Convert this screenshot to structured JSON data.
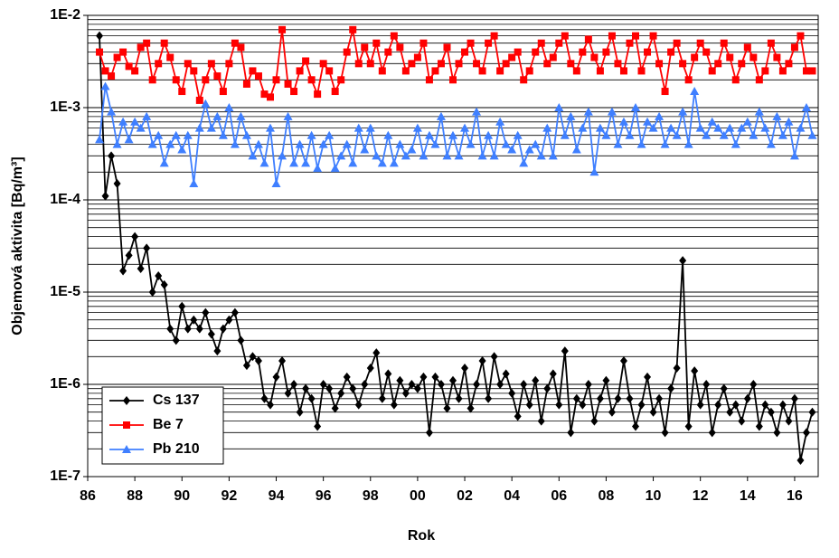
{
  "chart_data": {
    "type": "line",
    "log_y": true,
    "grid": true,
    "minor_grid": true,
    "legend": "lower left",
    "x_label": "Rok",
    "y_label": "Objemová aktivita [Bq/m³]",
    "xlim": [
      1986,
      2017
    ],
    "xticks": [
      {
        "value": 1986,
        "label": "86"
      },
      {
        "value": 1988,
        "label": "88"
      },
      {
        "value": 1990,
        "label": "90"
      },
      {
        "value": 1992,
        "label": "92"
      },
      {
        "value": 1994,
        "label": "94"
      },
      {
        "value": 1996,
        "label": "96"
      },
      {
        "value": 1998,
        "label": "98"
      },
      {
        "value": 2000,
        "label": "00"
      },
      {
        "value": 2002,
        "label": "02"
      },
      {
        "value": 2004,
        "label": "04"
      },
      {
        "value": 2006,
        "label": "06"
      },
      {
        "value": 2008,
        "label": "08"
      },
      {
        "value": 2010,
        "label": "10"
      },
      {
        "value": 2012,
        "label": "12"
      },
      {
        "value": 2014,
        "label": "14"
      },
      {
        "value": 2016,
        "label": "16"
      }
    ],
    "ylim": [
      1e-07,
      0.01
    ],
    "yticks": [
      {
        "value": 1e-07,
        "label": "1E-7"
      },
      {
        "value": 1e-06,
        "label": "1E-6"
      },
      {
        "value": 1e-05,
        "label": "1E-5"
      },
      {
        "value": 0.0001,
        "label": "1E-4"
      },
      {
        "value": 0.001,
        "label": "1E-3"
      },
      {
        "value": 0.01,
        "label": "1E-2"
      }
    ],
    "x": [
      1986.5,
      1986.75,
      1987,
      1987.25,
      1987.5,
      1987.75,
      1988,
      1988.25,
      1988.5,
      1988.75,
      1989,
      1989.25,
      1989.5,
      1989.75,
      1990,
      1990.25,
      1990.5,
      1990.75,
      1991,
      1991.25,
      1991.5,
      1991.75,
      1992,
      1992.25,
      1992.5,
      1992.75,
      1993,
      1993.25,
      1993.5,
      1993.75,
      1994,
      1994.25,
      1994.5,
      1994.75,
      1995,
      1995.25,
      1995.5,
      1995.75,
      1996,
      1996.25,
      1996.5,
      1996.75,
      1997,
      1997.25,
      1997.5,
      1997.75,
      1998,
      1998.25,
      1998.5,
      1998.75,
      1999,
      1999.25,
      1999.5,
      1999.75,
      2000,
      2000.25,
      2000.5,
      2000.75,
      2001,
      2001.25,
      2001.5,
      2001.75,
      2002,
      2002.25,
      2002.5,
      2002.75,
      2003,
      2003.25,
      2003.5,
      2003.75,
      2004,
      2004.25,
      2004.5,
      2004.75,
      2005,
      2005.25,
      2005.5,
      2005.75,
      2006,
      2006.25,
      2006.5,
      2006.75,
      2007,
      2007.25,
      2007.5,
      2007.75,
      2008,
      2008.25,
      2008.5,
      2008.75,
      2009,
      2009.25,
      2009.5,
      2009.75,
      2010,
      2010.25,
      2010.5,
      2010.75,
      2011,
      2011.25,
      2011.5,
      2011.75,
      2012,
      2012.25,
      2012.5,
      2012.75,
      2013,
      2013.25,
      2013.5,
      2013.75,
      2014,
      2014.25,
      2014.5,
      2014.75,
      2015,
      2015.25,
      2015.5,
      2015.75,
      2016,
      2016.25,
      2016.5,
      2016.75
    ],
    "series": [
      {
        "name": "Cs 137",
        "color": "#000000",
        "marker": "diamond",
        "values": [
          0.006,
          0.00011,
          0.0003,
          0.00015,
          1.7e-05,
          2.5e-05,
          4e-05,
          1.8e-05,
          3e-05,
          1e-05,
          1.5e-05,
          1.2e-05,
          4e-06,
          3e-06,
          7e-06,
          4e-06,
          5e-06,
          4e-06,
          6e-06,
          3.5e-06,
          2.3e-06,
          4e-06,
          5e-06,
          6e-06,
          3e-06,
          1.6e-06,
          2e-06,
          1.8e-06,
          7e-07,
          6e-07,
          1.2e-06,
          1.8e-06,
          8e-07,
          1e-06,
          5e-07,
          9e-07,
          7e-07,
          3.5e-07,
          1e-06,
          9e-07,
          5.5e-07,
          8e-07,
          1.2e-06,
          9e-07,
          6e-07,
          1e-06,
          1.5e-06,
          2.2e-06,
          7e-07,
          1.3e-06,
          6e-07,
          1.1e-06,
          8e-07,
          1e-06,
          9e-07,
          1.2e-06,
          3e-07,
          1.2e-06,
          1e-06,
          5.5e-07,
          1.1e-06,
          7e-07,
          1.5e-06,
          5.5e-07,
          1e-06,
          1.8e-06,
          7e-07,
          2e-06,
          1e-06,
          1.3e-06,
          8e-07,
          4.5e-07,
          1e-06,
          6e-07,
          1.1e-06,
          4e-07,
          9e-07,
          1.3e-06,
          6e-07,
          2.3e-06,
          3e-07,
          7e-07,
          6e-07,
          1e-06,
          4e-07,
          7e-07,
          1.1e-06,
          5e-07,
          7e-07,
          1.8e-06,
          7e-07,
          3.5e-07,
          6e-07,
          1.2e-06,
          5e-07,
          7e-07,
          3e-07,
          9e-07,
          1.5e-06,
          2.2e-05,
          3.5e-07,
          1.4e-06,
          6e-07,
          1e-06,
          3e-07,
          6e-07,
          9e-07,
          5e-07,
          6e-07,
          4e-07,
          7e-07,
          1e-06,
          3.5e-07,
          6e-07,
          5e-07,
          3e-07,
          6e-07,
          4e-07,
          7e-07,
          1.5e-07,
          3e-07,
          5e-07
        ]
      },
      {
        "name": "Be 7",
        "color": "#ff0000",
        "marker": "square",
        "values": [
          0.004,
          0.0025,
          0.0022,
          0.0035,
          0.004,
          0.0028,
          0.0025,
          0.0045,
          0.005,
          0.002,
          0.003,
          0.005,
          0.0035,
          0.002,
          0.0015,
          0.003,
          0.0025,
          0.0012,
          0.002,
          0.003,
          0.0022,
          0.0015,
          0.003,
          0.005,
          0.0045,
          0.0018,
          0.0025,
          0.0022,
          0.0014,
          0.0013,
          0.002,
          0.007,
          0.0018,
          0.0015,
          0.0025,
          0.0032,
          0.002,
          0.0014,
          0.003,
          0.0025,
          0.0015,
          0.002,
          0.004,
          0.007,
          0.003,
          0.0045,
          0.003,
          0.005,
          0.0025,
          0.004,
          0.006,
          0.0045,
          0.0025,
          0.003,
          0.0035,
          0.005,
          0.002,
          0.0025,
          0.003,
          0.0045,
          0.002,
          0.003,
          0.004,
          0.005,
          0.003,
          0.0025,
          0.005,
          0.006,
          0.0025,
          0.003,
          0.0035,
          0.004,
          0.002,
          0.0025,
          0.004,
          0.005,
          0.003,
          0.0035,
          0.005,
          0.006,
          0.003,
          0.0025,
          0.004,
          0.0055,
          0.0035,
          0.0025,
          0.004,
          0.006,
          0.003,
          0.0025,
          0.005,
          0.006,
          0.0025,
          0.004,
          0.006,
          0.003,
          0.0015,
          0.004,
          0.005,
          0.003,
          0.002,
          0.0035,
          0.005,
          0.004,
          0.0025,
          0.003,
          0.005,
          0.0035,
          0.002,
          0.003,
          0.0045,
          0.0035,
          0.002,
          0.0025,
          0.005,
          0.0035,
          0.0025,
          0.003,
          0.0045,
          0.006,
          0.0025,
          0.0025
        ]
      },
      {
        "name": "Pb 210",
        "color": "#3f7fff",
        "marker": "triangle",
        "values": [
          0.00045,
          0.0017,
          0.0009,
          0.0004,
          0.0007,
          0.00045,
          0.0007,
          0.0006,
          0.0008,
          0.0004,
          0.0005,
          0.00025,
          0.0004,
          0.0005,
          0.00035,
          0.0005,
          0.00015,
          0.0006,
          0.0011,
          0.0006,
          0.0008,
          0.0005,
          0.001,
          0.0004,
          0.0008,
          0.0005,
          0.0003,
          0.0004,
          0.00025,
          0.0006,
          0.00015,
          0.0003,
          0.0008,
          0.00025,
          0.0004,
          0.00025,
          0.0005,
          0.00022,
          0.0004,
          0.0005,
          0.00022,
          0.0003,
          0.0004,
          0.00025,
          0.0006,
          0.00035,
          0.0006,
          0.0003,
          0.00025,
          0.0005,
          0.00025,
          0.0004,
          0.0003,
          0.00035,
          0.0006,
          0.0003,
          0.0005,
          0.0004,
          0.0008,
          0.0003,
          0.0005,
          0.0003,
          0.0006,
          0.0004,
          0.0009,
          0.0003,
          0.0005,
          0.0003,
          0.0007,
          0.0004,
          0.00035,
          0.0005,
          0.00025,
          0.00035,
          0.0004,
          0.0003,
          0.0006,
          0.0003,
          0.001,
          0.0005,
          0.0008,
          0.00035,
          0.0006,
          0.0009,
          0.0002,
          0.0006,
          0.0005,
          0.0009,
          0.0004,
          0.0007,
          0.0005,
          0.001,
          0.0004,
          0.0007,
          0.0006,
          0.0008,
          0.0004,
          0.0006,
          0.0005,
          0.0009,
          0.0004,
          0.0015,
          0.0006,
          0.0005,
          0.0007,
          0.0006,
          0.0005,
          0.0006,
          0.0004,
          0.0006,
          0.0007,
          0.0005,
          0.0009,
          0.0006,
          0.0004,
          0.0008,
          0.0005,
          0.0007,
          0.0003,
          0.0006,
          0.001,
          0.0005
        ]
      }
    ]
  }
}
